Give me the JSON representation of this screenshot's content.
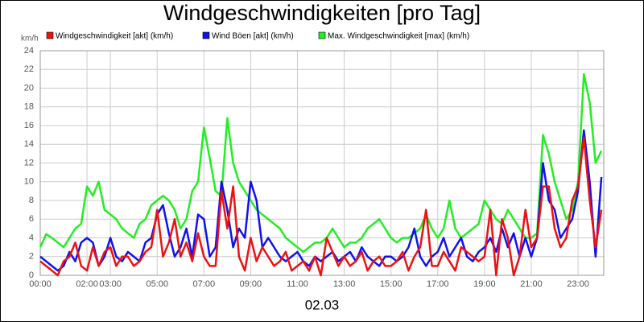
{
  "chart_data": {
    "type": "line",
    "title": "Windgeschwindigkeiten [pro Tag]",
    "y_label": "km/h",
    "x_label": "02.03",
    "x": [
      0,
      0.25,
      0.5,
      0.75,
      1,
      1.25,
      1.5,
      1.75,
      2,
      2.25,
      2.5,
      2.75,
      3,
      3.25,
      3.5,
      3.75,
      4,
      4.25,
      4.5,
      4.75,
      5,
      5.25,
      5.5,
      5.75,
      6,
      6.25,
      6.5,
      6.75,
      7,
      7.25,
      7.5,
      7.75,
      8,
      8.25,
      8.5,
      8.75,
      9,
      9.25,
      9.5,
      9.75,
      10,
      10.25,
      10.5,
      10.75,
      11,
      11.25,
      11.5,
      11.75,
      12,
      12.25,
      12.5,
      12.75,
      13,
      13.25,
      13.5,
      13.75,
      14,
      14.25,
      14.5,
      14.75,
      15,
      15.25,
      15.5,
      15.75,
      16,
      16.25,
      16.5,
      16.75,
      17,
      17.25,
      17.5,
      17.75,
      18,
      18.25,
      18.5,
      18.75,
      19,
      19.25,
      19.5,
      19.75,
      20,
      20.25,
      20.5,
      20.75,
      21,
      21.25,
      21.5,
      21.75,
      22,
      22.25,
      22.5,
      22.75,
      23,
      23.25,
      23.5,
      23.75,
      24
    ],
    "series": [
      {
        "name": "Windgeschwindigkeit [akt] (km/h)",
        "color": "#ee1111",
        "values": [
          1.5,
          1,
          0.5,
          0,
          1.5,
          2,
          3.5,
          1,
          0.5,
          3,
          1,
          2.5,
          3,
          1,
          2,
          2,
          1,
          1.5,
          2.5,
          3,
          7,
          2,
          3.5,
          6,
          2,
          3.5,
          1.5,
          4.5,
          2,
          1,
          1,
          9,
          5,
          9.5,
          2,
          0.5,
          4,
          1.5,
          3,
          2,
          1,
          1.5,
          2.5,
          0.5,
          1,
          1.5,
          0.5,
          2,
          0,
          4,
          2.5,
          1,
          2,
          1,
          1.5,
          2.5,
          0.5,
          1.5,
          2,
          1,
          1,
          1.5,
          2.5,
          0.5,
          2,
          3,
          7,
          1,
          1,
          2.5,
          1.5,
          0.5,
          3,
          2.5,
          2,
          1.5,
          2,
          7,
          0,
          6,
          4,
          0,
          2,
          7,
          3,
          4,
          9.5,
          9.5,
          5,
          3,
          4,
          8,
          9.5,
          14.7,
          8,
          3,
          7
        ]
      },
      {
        "name": "Wind Böen [akt] (km/h)",
        "color": "#1111ee",
        "values": [
          2,
          1.5,
          1,
          0.5,
          1,
          2.5,
          1.5,
          3.5,
          4,
          3.5,
          1,
          2,
          4,
          2,
          1.5,
          2.5,
          2,
          1.5,
          3.5,
          4,
          6.5,
          7.5,
          4.5,
          2,
          3,
          5,
          2,
          6.5,
          6,
          2,
          3,
          10,
          7,
          3,
          5,
          4,
          10,
          8,
          3,
          4,
          3,
          2,
          1.5,
          2,
          2.5,
          1.5,
          1,
          2,
          1.5,
          2,
          2.5,
          1.5,
          2,
          2.5,
          1.5,
          3,
          2,
          1.5,
          1,
          2,
          2,
          1.5,
          2,
          3,
          5,
          2,
          1,
          2,
          2.5,
          4,
          2,
          3,
          4,
          2,
          1.5,
          2.5,
          3,
          4,
          2.5,
          5,
          3,
          4.5,
          2,
          4,
          2,
          4,
          12,
          8,
          7,
          4,
          5,
          6,
          9,
          15.5,
          10,
          2,
          10.5
        ]
      },
      {
        "name": "Max. Windgeschwindigkeit [max] (km/h)",
        "color": "#22ee22",
        "values": [
          3,
          4.4,
          4,
          3.5,
          3,
          4,
          5,
          5.5,
          9.5,
          8.5,
          10,
          7,
          6.5,
          6,
          5,
          4.5,
          4,
          5.5,
          6,
          7.5,
          8,
          8.5,
          8,
          7,
          5,
          6,
          9,
          10,
          15.8,
          12.5,
          9,
          8.5,
          16.8,
          12,
          10,
          9,
          8,
          7,
          6.5,
          6,
          5.5,
          5,
          4,
          3.5,
          3,
          2.5,
          3,
          3.5,
          3.5,
          4,
          5,
          4,
          3,
          3.5,
          3.5,
          4,
          5,
          5.5,
          6,
          5,
          4,
          3.5,
          4,
          4,
          4.5,
          5,
          6.5,
          5,
          4,
          5,
          8,
          5,
          4,
          4.5,
          5,
          5.5,
          8,
          7,
          6,
          5.5,
          7,
          6,
          5,
          4,
          4,
          4.5,
          15,
          13,
          10,
          8,
          6,
          7,
          10,
          21.5,
          18.5,
          12,
          13.3
        ]
      }
    ],
    "xlim": [
      0,
      24.1
    ],
    "xticks": [
      {
        "value": 0,
        "label": "00:00"
      },
      {
        "value": 2,
        "label": "02:00"
      },
      {
        "value": 3,
        "label": "03:00"
      },
      {
        "value": 5,
        "label": "05:00"
      },
      {
        "value": 7,
        "label": "07:00"
      },
      {
        "value": 9,
        "label": "09:00"
      },
      {
        "value": 11,
        "label": "11:00"
      },
      {
        "value": 13,
        "label": "13:00"
      },
      {
        "value": 15,
        "label": "15:00"
      },
      {
        "value": 17,
        "label": "17:00"
      },
      {
        "value": 19,
        "label": "19:00"
      },
      {
        "value": 21,
        "label": "21:00"
      },
      {
        "value": 23,
        "label": "23:00"
      }
    ],
    "ylim": [
      0,
      24
    ],
    "yticks": [
      0,
      2,
      4,
      6,
      8,
      10,
      12,
      14,
      16,
      18,
      20,
      22,
      24
    ],
    "grid": true,
    "legend": "top"
  }
}
